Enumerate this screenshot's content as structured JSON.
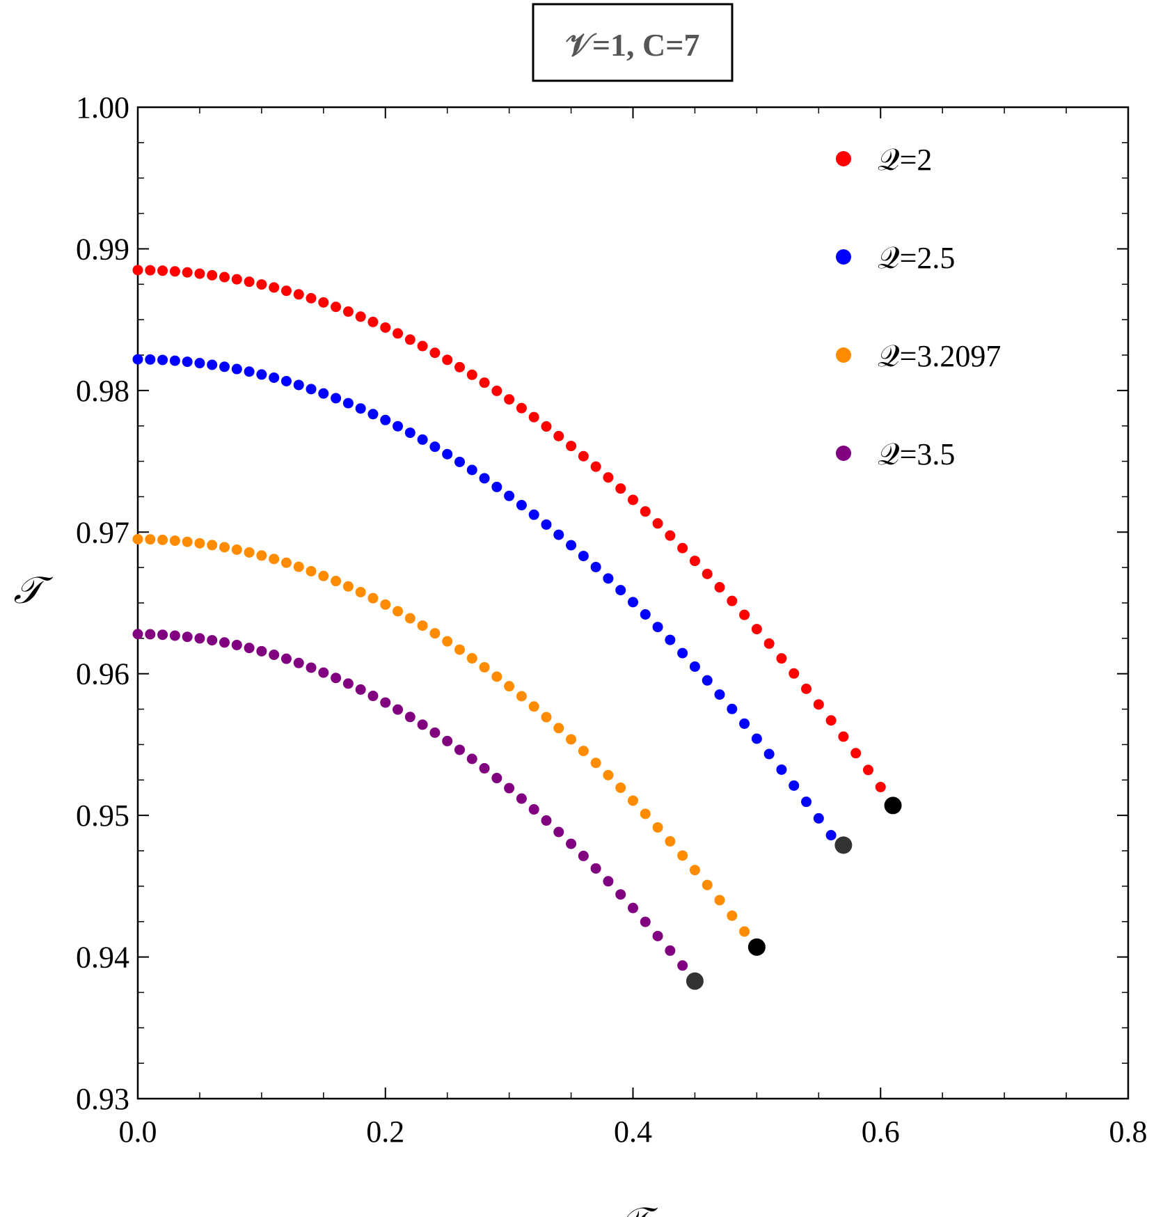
{
  "chart_data": {
    "type": "scatter",
    "title": "𝒱=1, C=7",
    "xlabel": "𝒯",
    "ylabel": "𝒯",
    "xlim": [
      0.0,
      0.8
    ],
    "ylim": [
      0.93,
      1.0
    ],
    "x_ticks": [
      "0.0",
      "0.2",
      "0.4",
      "0.6",
      "0.8"
    ],
    "y_ticks": [
      "0.93",
      "0.94",
      "0.95",
      "0.96",
      "0.97",
      "0.98",
      "0.99",
      "1.00"
    ],
    "legend_position": "top-right",
    "grid": false,
    "series": [
      {
        "name": "𝒬=2",
        "color": "#ff0000",
        "x_max": 0.6,
        "y0": 0.9885,
        "y_end": 0.952,
        "n": 61,
        "terminal_point": {
          "x": 0.61,
          "y": 0.9507,
          "color": "#000000"
        }
      },
      {
        "name": "𝒬=2.5",
        "color": "#0000ff",
        "x_max": 0.56,
        "y0": 0.9822,
        "y_end": 0.9486,
        "n": 57,
        "terminal_point": {
          "x": 0.57,
          "y": 0.9479,
          "color": "#333333"
        }
      },
      {
        "name": "𝒬=3.2097",
        "color": "#ff8c00",
        "x_max": 0.49,
        "y0": 0.9695,
        "y_end": 0.9418,
        "n": 50,
        "terminal_point": {
          "x": 0.5,
          "y": 0.9407,
          "color": "#000000"
        }
      },
      {
        "name": "𝒬=3.5",
        "color": "#800080",
        "x_max": 0.44,
        "y0": 0.9628,
        "y_end": 0.9394,
        "n": 45,
        "terminal_point": {
          "x": 0.45,
          "y": 0.9383,
          "color": "#333333"
        }
      }
    ]
  }
}
